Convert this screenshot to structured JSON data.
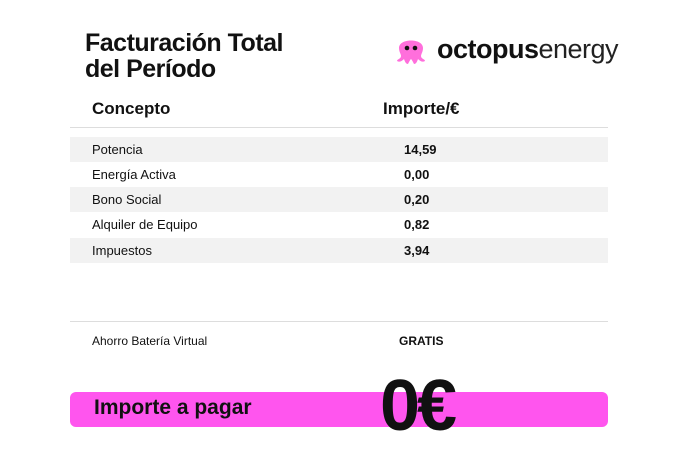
{
  "header": {
    "title_lines": [
      "Facturación Total",
      "del Período"
    ],
    "logo": {
      "bold": "octopus",
      "light": "energy"
    }
  },
  "table": {
    "columns": [
      "Concepto",
      "Importe/€"
    ],
    "rows": [
      [
        "Potencia",
        "14,59"
      ],
      [
        "Energía Activa",
        "0,00"
      ],
      [
        "Bono Social",
        "0,20"
      ],
      [
        "Alquiler de Equipo",
        "0,82"
      ],
      [
        "Impuestos",
        "3,94"
      ]
    ]
  },
  "savings": {
    "label": "Ahorro Batería Virtual",
    "value": "GRATIS"
  },
  "total": {
    "label": "Importe a pagar",
    "value": "0€"
  }
}
